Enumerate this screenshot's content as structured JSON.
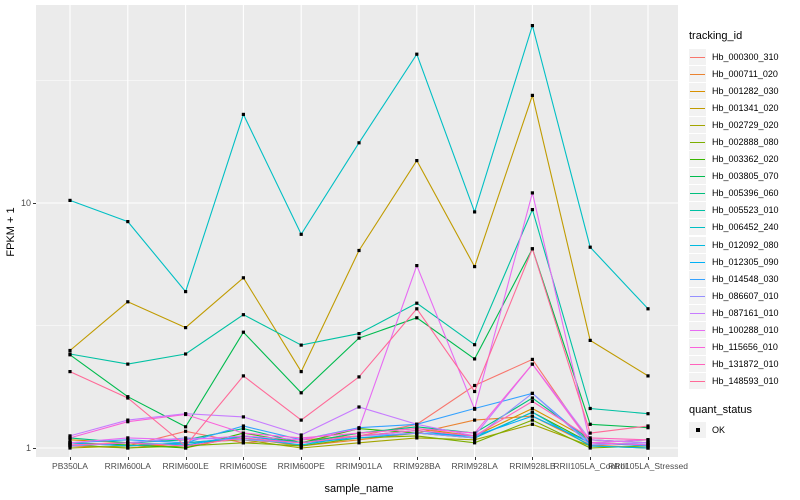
{
  "chart_data": {
    "type": "line",
    "xlabel": "sample_name",
    "ylabel": "FPKM + 1",
    "y_scale": "log10",
    "y_ticks": [
      1,
      10
    ],
    "y_minor_ticks": [
      3.162,
      31.62
    ],
    "ylim": [
      0.95,
      60
    ],
    "grid": "on",
    "panel_bg": "#EBEBEB",
    "grid_color": "#FFFFFF",
    "marker": "black-square",
    "legend_position": "right",
    "categories": [
      "PB350LA",
      "RRIM600LA",
      "RRIM600LE",
      "RRIM600SE",
      "RRIM600PE",
      "RRIM901LA",
      "RRIM928BA",
      "RRIM928LA",
      "RRIM928LB",
      "RRII105LA_Control",
      "RRII105LA_Stressed"
    ],
    "legend_title": "tracking_id",
    "series": [
      {
        "name": "Hb_000300_310",
        "color": "#F8766D",
        "values": [
          1.05,
          1.02,
          1.17,
          1.05,
          1.08,
          1.12,
          1.25,
          1.8,
          2.3,
          1.05,
          1.02
        ]
      },
      {
        "name": "Hb_000711_020",
        "color": "#EA8331",
        "values": [
          1.02,
          1.0,
          1.05,
          1.1,
          1.02,
          1.08,
          1.15,
          1.3,
          1.35,
          1.03,
          1.0
        ]
      },
      {
        "name": "Hb_001282_030",
        "color": "#D89000",
        "values": [
          1.08,
          1.05,
          1.0,
          1.12,
          1.05,
          1.15,
          1.2,
          1.12,
          1.45,
          1.08,
          1.05
        ]
      },
      {
        "name": "Hb_001341_020",
        "color": "#C09B00",
        "values": [
          2.5,
          3.95,
          3.1,
          4.95,
          2.05,
          6.4,
          14.9,
          5.5,
          27.5,
          2.75,
          1.97
        ]
      },
      {
        "name": "Hb_002729_020",
        "color": "#A3A500",
        "values": [
          1.0,
          1.02,
          1.05,
          1.08,
          1.0,
          1.05,
          1.1,
          1.08,
          1.25,
          1.02,
          1.0
        ]
      },
      {
        "name": "Hb_002888_080",
        "color": "#7CAE00",
        "values": [
          1.03,
          1.0,
          1.02,
          1.05,
          1.02,
          1.1,
          1.12,
          1.05,
          1.3,
          1.0,
          1.02
        ]
      },
      {
        "name": "Hb_003362_020",
        "color": "#39B600",
        "values": [
          1.05,
          1.03,
          1.0,
          1.15,
          1.05,
          1.2,
          1.15,
          1.1,
          1.4,
          1.05,
          1.08
        ]
      },
      {
        "name": "Hb_003805_070",
        "color": "#00BB4E",
        "values": [
          2.4,
          1.62,
          1.22,
          2.97,
          1.68,
          2.81,
          3.4,
          2.31,
          6.5,
          1.25,
          1.21
        ]
      },
      {
        "name": "Hb_005396_060",
        "color": "#00BF7D",
        "values": [
          1.1,
          1.05,
          1.08,
          1.2,
          1.05,
          1.15,
          1.22,
          1.15,
          1.6,
          1.08,
          1.05
        ]
      },
      {
        "name": "Hb_005523_010",
        "color": "#00C1A3",
        "values": [
          2.42,
          2.2,
          2.42,
          3.5,
          2.63,
          2.93,
          3.9,
          2.64,
          9.4,
          1.45,
          1.38
        ]
      },
      {
        "name": "Hb_006452_240",
        "color": "#00BFC4",
        "values": [
          10.25,
          8.4,
          4.35,
          23.0,
          7.45,
          17.6,
          40.5,
          9.2,
          53.0,
          6.6,
          3.7
        ]
      },
      {
        "name": "Hb_012092_080",
        "color": "#00BAE0",
        "values": [
          1.05,
          1.02,
          1.05,
          1.1,
          1.03,
          1.12,
          1.18,
          1.1,
          1.4,
          1.02,
          1.0
        ]
      },
      {
        "name": "Hb_012305_090",
        "color": "#00B0F6",
        "values": [
          1.02,
          1.05,
          1.03,
          1.12,
          1.05,
          1.1,
          1.15,
          1.12,
          1.35,
          1.05,
          1.02
        ]
      },
      {
        "name": "Hb_014548_030",
        "color": "#35A2FF",
        "values": [
          1.05,
          1.08,
          1.05,
          1.23,
          1.08,
          1.21,
          1.25,
          1.45,
          1.67,
          1.05,
          1.03
        ]
      },
      {
        "name": "Hb_086607_010",
        "color": "#9590FF",
        "values": [
          1.02,
          1.05,
          1.1,
          1.08,
          1.05,
          1.12,
          1.15,
          1.1,
          1.67,
          1.03,
          1.05
        ]
      },
      {
        "name": "Hb_087161_010",
        "color": "#C77CFF",
        "values": [
          1.12,
          1.3,
          1.38,
          1.34,
          1.13,
          1.47,
          1.25,
          1.12,
          2.2,
          1.08,
          1.05
        ]
      },
      {
        "name": "Hb_100288_010",
        "color": "#E76BF3",
        "values": [
          1.05,
          1.1,
          1.08,
          1.12,
          1.08,
          1.2,
          5.55,
          1.44,
          11.0,
          1.05,
          1.08
        ]
      },
      {
        "name": "Hb_115656_010",
        "color": "#FA62DB",
        "values": [
          1.1,
          1.28,
          1.37,
          1.15,
          1.1,
          1.15,
          1.2,
          1.15,
          2.2,
          1.05,
          1.03
        ]
      },
      {
        "name": "Hb_131872_010",
        "color": "#FF62BC",
        "values": [
          1.03,
          1.05,
          1.02,
          1.1,
          1.05,
          1.12,
          1.18,
          1.12,
          1.55,
          1.1,
          1.08
        ]
      },
      {
        "name": "Hb_148593_010",
        "color": "#FF6A98",
        "values": [
          2.05,
          1.6,
          1.02,
          1.97,
          1.3,
          1.95,
          3.7,
          1.7,
          6.5,
          1.15,
          1.23
        ]
      }
    ],
    "quant_legend": {
      "title": "quant_status",
      "items": [
        {
          "label": "OK",
          "marker": "black-square"
        }
      ]
    }
  }
}
